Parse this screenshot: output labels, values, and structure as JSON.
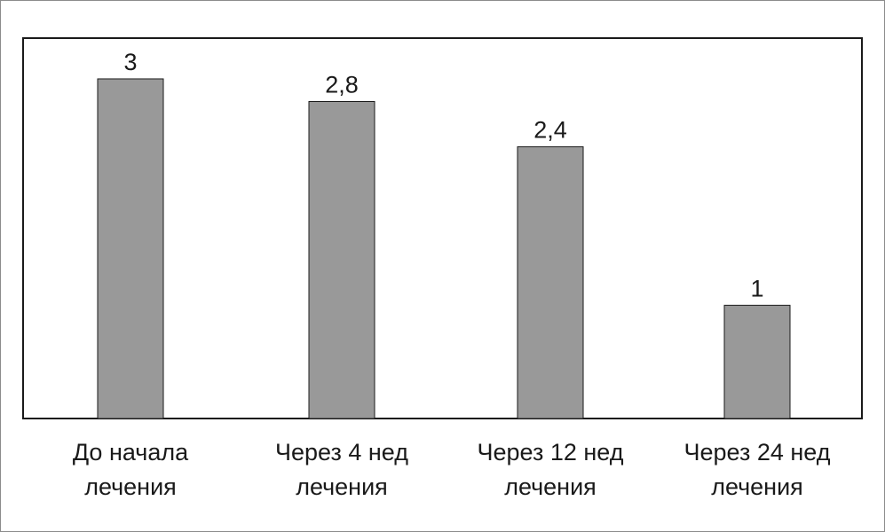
{
  "chart_data": {
    "type": "bar",
    "categories": [
      [
        "До начала",
        "лечения"
      ],
      [
        "Через 4 нед",
        "лечения"
      ],
      [
        "Через 12 нед",
        "лечения"
      ],
      [
        "Через 24 нед",
        "лечения"
      ]
    ],
    "values": [
      3,
      2.8,
      2.4,
      1
    ],
    "value_labels": [
      "3",
      "2,8",
      "2,4",
      "1"
    ],
    "title": "",
    "xlabel": "",
    "ylabel": "",
    "ylim": [
      0,
      3.36
    ],
    "grid": false,
    "legend": "none",
    "bar_color": "#999999",
    "bar_edge_color": "#1a1a1a",
    "frame_color": "#1a1a1a"
  }
}
